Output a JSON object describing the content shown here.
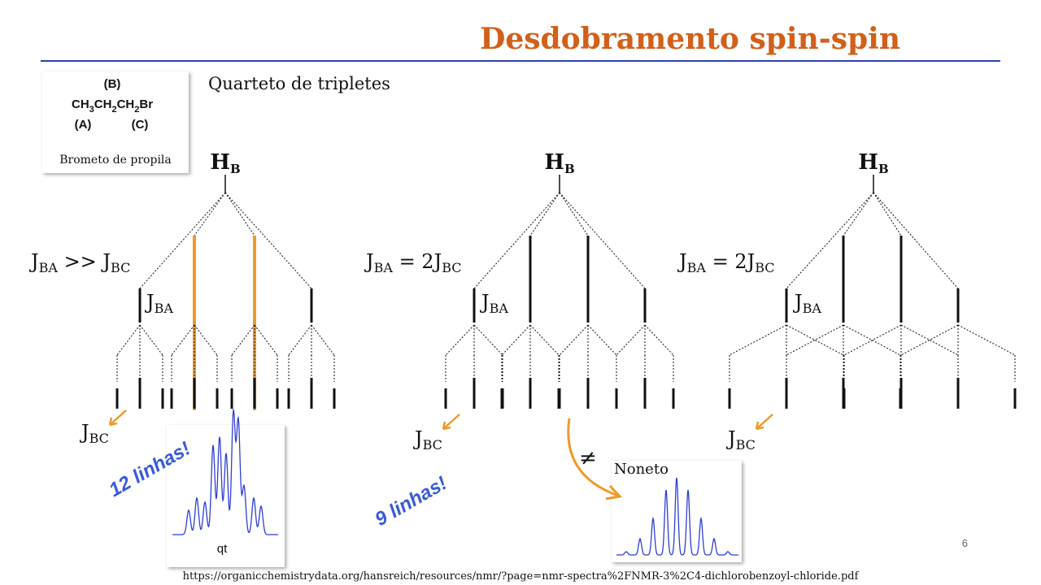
{
  "title": "Desdobramento spin-spin",
  "molecule": {
    "b_label": "(B)",
    "formula": [
      "CH",
      "3",
      "CH",
      "2",
      "CH",
      "2",
      "Br"
    ],
    "a_label": "(A)",
    "c_label": "(C)",
    "name": "Brometo de propila"
  },
  "subtitle": "Quarteto de tripletes",
  "diagrams": [
    {
      "nucleus": [
        "H",
        "B"
      ],
      "condition": [
        "J",
        "BA",
        " >> J",
        "BC"
      ],
      "coupling_major": [
        "J",
        "BA"
      ],
      "coupling_minor": [
        "J",
        "BC"
      ]
    },
    {
      "nucleus": [
        "H",
        "B"
      ],
      "condition": [
        "J",
        "BA",
        " = 2J",
        "BC"
      ],
      "coupling_major": [
        "J",
        "BA"
      ],
      "coupling_minor": [
        "J",
        "BC"
      ]
    },
    {
      "nucleus": [
        "H",
        "B"
      ],
      "condition": [
        "J",
        "BA",
        " = 2J",
        "BC"
      ],
      "coupling_major": [
        "J",
        "BA"
      ],
      "coupling_minor": [
        "J",
        "BC"
      ]
    }
  ],
  "annotations": {
    "lines_12": "12 linhas!",
    "qt": "qt",
    "lines_9": "9 linhas!",
    "not_equal": "≠",
    "noneto": "Noneto"
  },
  "page_number": "6",
  "source": "https://organicchemistrydata.org/hansreich/resources/nmr/?page=nmr-spectra%2FNMR-3%2C4-dichlorobenzoyl-chloride.pdf"
}
